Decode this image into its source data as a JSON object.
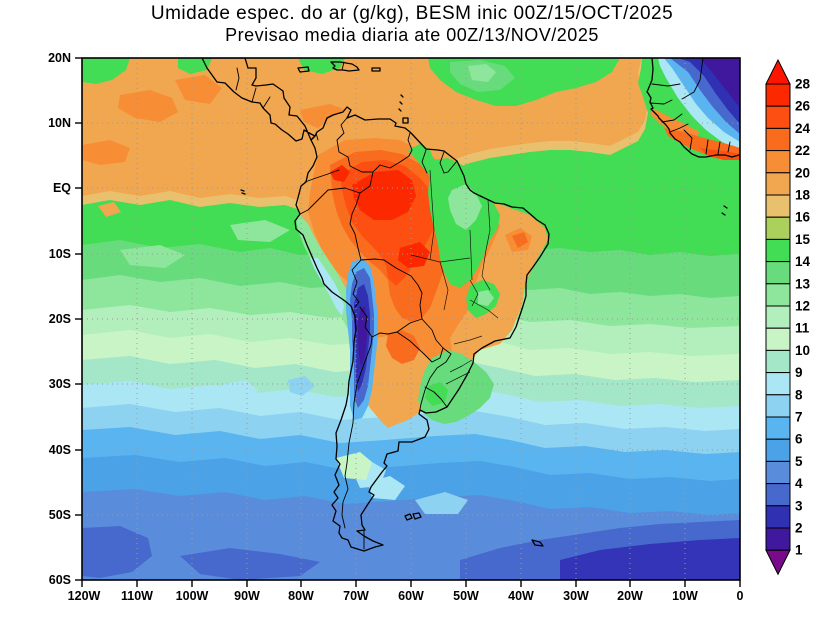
{
  "title": "Umidade espec. do ar (g/kg), BESM inic 00Z/15/OCT/2025",
  "subtitle": "Previsao media diaria ate 00Z/13/NOV/2025",
  "axes": {
    "x_ticks": [
      "120W",
      "110W",
      "100W",
      "90W",
      "80W",
      "70W",
      "60W",
      "50W",
      "40W",
      "30W",
      "20W",
      "10W",
      "0"
    ],
    "y_ticks": [
      "20N",
      "10N",
      "EQ",
      "10S",
      "20S",
      "30S",
      "40S",
      "50S",
      "60S"
    ]
  },
  "colorbar": {
    "boundary_labels": [
      "28",
      "26",
      "24",
      "22",
      "20",
      "18",
      "16",
      "15",
      "14",
      "13",
      "12",
      "11",
      "10",
      "9",
      "8",
      "7",
      "6",
      "5",
      "4",
      "3",
      "2",
      "1"
    ],
    "box_colors_top_to_bottom": [
      "#FB2800",
      "#FC4F11",
      "#F96C1E",
      "#F78E35",
      "#F1A74F",
      "#E9C06E",
      "#ABD15C",
      "#42DC55",
      "#68DC7D",
      "#8DE69C",
      "#B2EFBC",
      "#C9F5C6",
      "#A3E6C8",
      "#ABE6F5",
      "#8DD2F0",
      "#59B4F0",
      "#4BA2E6",
      "#5A8CDC",
      "#4769CE",
      "#3030B2",
      "#3F189E"
    ],
    "arrow_top_color": "#FF1400",
    "arrow_bottom_color": "#770B8C"
  },
  "palette": {
    "r_arrow": "#FF1400",
    "r26": "#FB2800",
    "o24": "#FC4F11",
    "o22": "#F96C1E",
    "o20": "#F78E35",
    "o18": "#F1A74F",
    "t16": "#E9C06E",
    "y15": "#ABD15C",
    "g14": "#42DC55",
    "g13": "#68DC7D",
    "g12": "#8DE69C",
    "g11": "#B2EFBC",
    "g10": "#C9F5C6",
    "t9": "#A3E6C8",
    "c8": "#ABE6F5",
    "b7": "#8DD2F0",
    "b6": "#59B4F0",
    "b5": "#4BA2E6",
    "b4": "#5A8CDC",
    "b3": "#4769CE",
    "n2": "#3030B2",
    "i1": "#3F189E",
    "p_arrow": "#770B8C",
    "n_corner": "#3434B8"
  },
  "chart_data": {
    "type": "heatmap",
    "subtype": "filled_contour_map",
    "title": "Umidade espec. do ar (g/kg), BESM inic 00Z/15/OCT/2025",
    "subtitle": "Previsao media diaria ate 00Z/13/NOV/2025",
    "variable": "Umidade especifica do ar",
    "units": "g/kg",
    "model": "BESM",
    "initialization": "00Z/15/OCT/2025",
    "forecast_mean_until": "00Z/13/NOV/2025",
    "map_extent": {
      "lon_min": -120,
      "lon_max": 0,
      "lat_min": -60,
      "lat_max": 20
    },
    "projection": "equirectangular",
    "grid": "10-degree dotted graticule",
    "legend_position": "right",
    "contour_levels": [
      1,
      2,
      3,
      4,
      5,
      6,
      7,
      8,
      9,
      10,
      11,
      12,
      13,
      14,
      15,
      16,
      18,
      20,
      22,
      24,
      26,
      28
    ],
    "level_colors": [
      [
        "<1",
        "#770B8C"
      ],
      [
        "1-2",
        "#3F189E"
      ],
      [
        "2-3",
        "#3030B2"
      ],
      [
        "3-4",
        "#4769CE"
      ],
      [
        "4-5",
        "#5A8CDC"
      ],
      [
        "5-6",
        "#4BA2E6"
      ],
      [
        "6-7",
        "#59B4F0"
      ],
      [
        "7-8",
        "#8DD2F0"
      ],
      [
        "8-9",
        "#ABE6F5"
      ],
      [
        "9-10",
        "#A3E6C8"
      ],
      [
        "10-11",
        "#C9F5C6"
      ],
      [
        "11-12",
        "#B2EFBC"
      ],
      [
        "12-13",
        "#8DE69C"
      ],
      [
        "13-14",
        "#68DC7D"
      ],
      [
        "14-15",
        "#42DC55"
      ],
      [
        "15-16",
        "#ABD15C"
      ],
      [
        "16-18",
        "#E9C06E"
      ],
      [
        "18-20",
        "#F1A74F"
      ],
      [
        "20-22",
        "#F78E35"
      ],
      [
        "22-24",
        "#F96C1E"
      ],
      [
        "24-26",
        "#FC4F11"
      ],
      [
        "26-28",
        "#FB2800"
      ],
      [
        ">28",
        "#FF1400"
      ]
    ],
    "regions": [
      {
        "area": "Amazon basin core (70W-55W, 8S-EQ)",
        "approx_g_per_kg": "26-28"
      },
      {
        "area": "Amazon / Orinoco surrounding ring",
        "approx_g_per_kg": "22-26"
      },
      {
        "area": "Tropical Pacific band (EQ-20N)",
        "approx_g_per_kg": "18-20"
      },
      {
        "area": "Caribbean coast of Colombia/Venezuela",
        "approx_g_per_kg": "20-22"
      },
      {
        "area": "Gulf of Guinea coast (West Africa)",
        "approx_g_per_kg": "22-26"
      },
      {
        "area": "Sahara / Sahel, NE corner of map",
        "approx_g_per_kg": "2-6"
      },
      {
        "area": "Central Andes / Atacama dry strip (70W-67W, 12S-35S)",
        "approx_g_per_kg": "1-4"
      },
      {
        "area": "Chaco (N Argentina / Paraguay)",
        "approx_g_per_kg": "20-24"
      },
      {
        "area": "Uruguay / Rio Grande do Sul green patch",
        "approx_g_per_kg": "14-15"
      },
      {
        "area": "Eastern Amazon / Para-Tocantins green belt",
        "approx_g_per_kg": "14-15"
      },
      {
        "area": "NE Brazil interior (caatinga)",
        "approx_g_per_kg": "18-22"
      },
      {
        "area": "Peru coastal upwelling strip",
        "approx_g_per_kg": "10-13"
      },
      {
        "area": "North Atlantic trades green patch (10N-20N, 55W-30W)",
        "approx_g_per_kg": "14-15"
      },
      {
        "area": "SE Pacific subtropics (25S-35S)",
        "approx_g_per_kg": "8-11"
      },
      {
        "area": "South Atlantic (30S-40S)",
        "approx_g_per_kg": "8-10"
      },
      {
        "area": "Southern Ocean (40S-50S)",
        "approx_g_per_kg": "5-7"
      },
      {
        "area": "Southern Ocean (50S-60S)",
        "approx_g_per_kg": "3-5"
      }
    ]
  }
}
